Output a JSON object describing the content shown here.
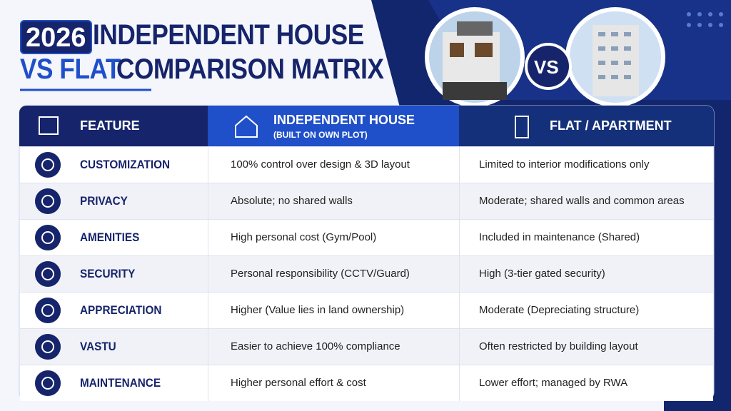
{
  "header": {
    "year": "2026",
    "title_line1": "INDEPENDENT HOUSE",
    "title_line2_highlight": "VS FLAT",
    "title_line2_rest": "COMPARISON MATRIX",
    "vs": "VS"
  },
  "table": {
    "columns": [
      {
        "title": "FEATURE"
      },
      {
        "title": "INDEPENDENT HOUSE",
        "subtitle": "(BUILT ON OWN PLOT)"
      },
      {
        "title": "FLAT / APARTMENT"
      }
    ],
    "rows": [
      [
        "CUSTOMIZATION",
        "100% control over design & 3D layout",
        "Limited to interior modifications only"
      ],
      [
        "PRIVACY",
        "Absolute; no shared walls",
        "Moderate; shared walls and common areas"
      ],
      [
        "AMENITIES",
        "High personal cost (Gym/Pool)",
        "Included in maintenance (Shared)"
      ],
      [
        "SECURITY",
        "Personal responsibility (CCTV/Guard)",
        "High (3-tier gated security)"
      ],
      [
        "APPRECIATION",
        "Higher (Value lies in land ownership)",
        "Moderate (Depreciating structure)"
      ],
      [
        "VASTU",
        "Easier to achieve 100% compliance",
        "Often restricted by building layout"
      ],
      [
        "MAINTENANCE",
        "Higher personal effort & cost",
        "Lower effort; managed by RWA"
      ]
    ]
  }
}
